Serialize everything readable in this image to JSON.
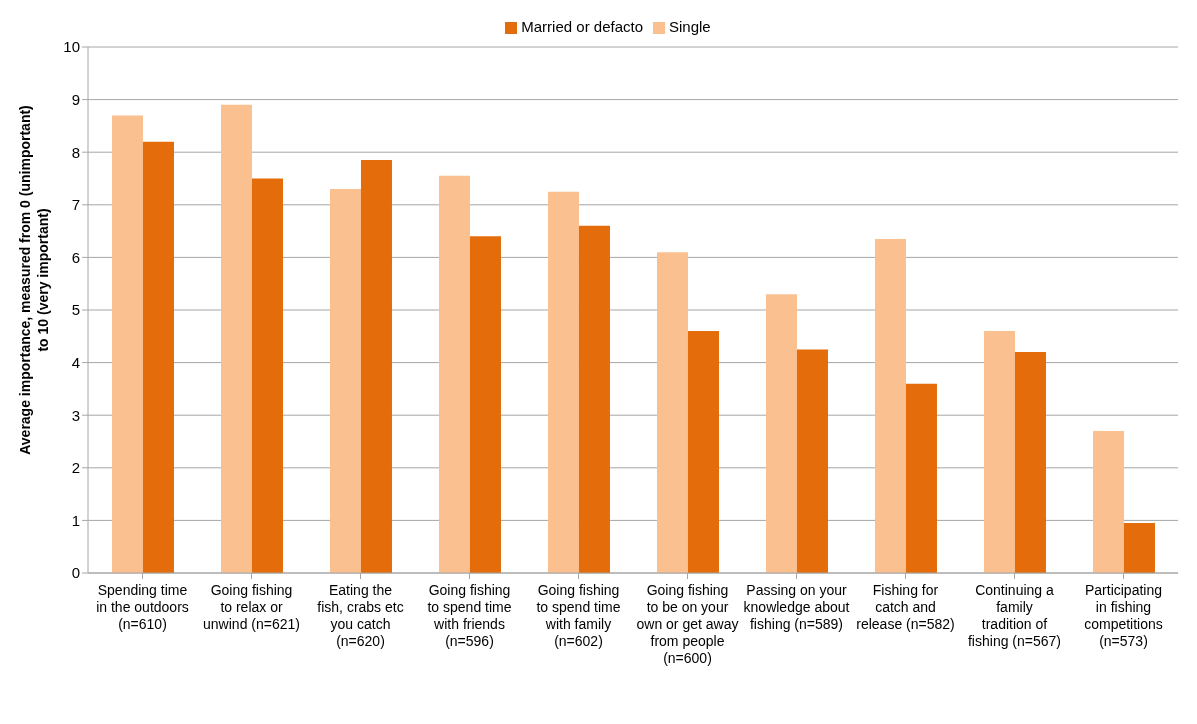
{
  "chart_data": {
    "type": "bar",
    "ylabel": "Average importance, measured from 0 (unimportant) to 10 (very important)",
    "categories": [
      "Spending time in the outdoors (n=610)",
      "Going fishing to relax or unwind (n=621)",
      "Eating the fish, crabs etc you catch (n=620)",
      "Going fishing to spend time with friends (n=596)",
      "Going fishing to spend time with family (n=602)",
      "Going fishing to be on your own or get away from people (n=600)",
      "Passing on your knowledge about fishing (n=589)",
      "Fishing for catch and release (n=582)",
      "Continuing a family tradition of fishing (n=567)",
      "Participating in fishing competitions (n=573)"
    ],
    "series": [
      {
        "name": "Single",
        "color": "#fac090",
        "values": [
          8.7,
          8.9,
          7.3,
          7.55,
          7.25,
          6.1,
          5.3,
          6.35,
          4.6,
          2.7
        ]
      },
      {
        "name": "Married or defacto",
        "color": "#e46c0a",
        "values": [
          8.2,
          7.5,
          7.85,
          6.4,
          6.6,
          4.6,
          4.25,
          3.6,
          4.2,
          0.95
        ]
      }
    ],
    "ylim": [
      0,
      10
    ],
    "yticks": [
      0,
      1,
      2,
      3,
      4,
      5,
      6,
      7,
      8,
      9,
      10
    ],
    "grid": "y",
    "legend": "top"
  }
}
